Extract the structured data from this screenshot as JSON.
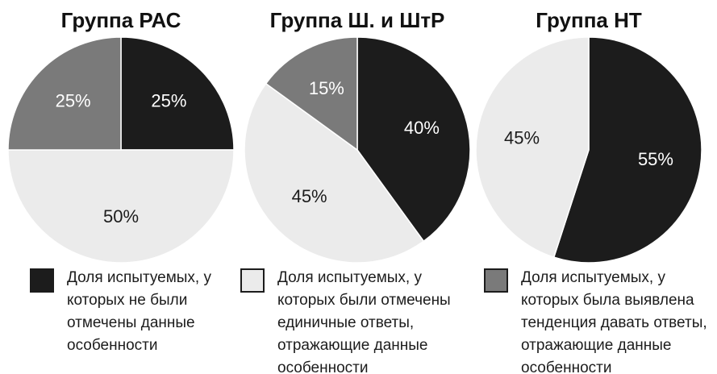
{
  "chart_data": [
    {
      "type": "pie",
      "title": "Группа РАС",
      "values": [
        25,
        50,
        25
      ],
      "value_labels": [
        "25%",
        "50%",
        "25%"
      ]
    },
    {
      "type": "pie",
      "title": "Группа Ш. и ШтР",
      "values": [
        40,
        45,
        15
      ],
      "value_labels": [
        "40%",
        "45%",
        "15%"
      ]
    },
    {
      "type": "pie",
      "title": "Группа НТ",
      "values": [
        55,
        45
      ],
      "value_labels": [
        "55%",
        "45%"
      ]
    }
  ],
  "legend": [
    {
      "name": "Доля испытуемых, у которых не были отмечены данные особенности",
      "color": "#1c1c1c"
    },
    {
      "name": "Доля испытуемых, у которых были отмечены единичные ответы, отражающие данные особенности",
      "color": "#ebebeb"
    },
    {
      "name": "Доля испытуемых, у которых была выявлена тенденция давать ответы, отражающие данные особенности",
      "color": "#7a7a7a"
    }
  ]
}
